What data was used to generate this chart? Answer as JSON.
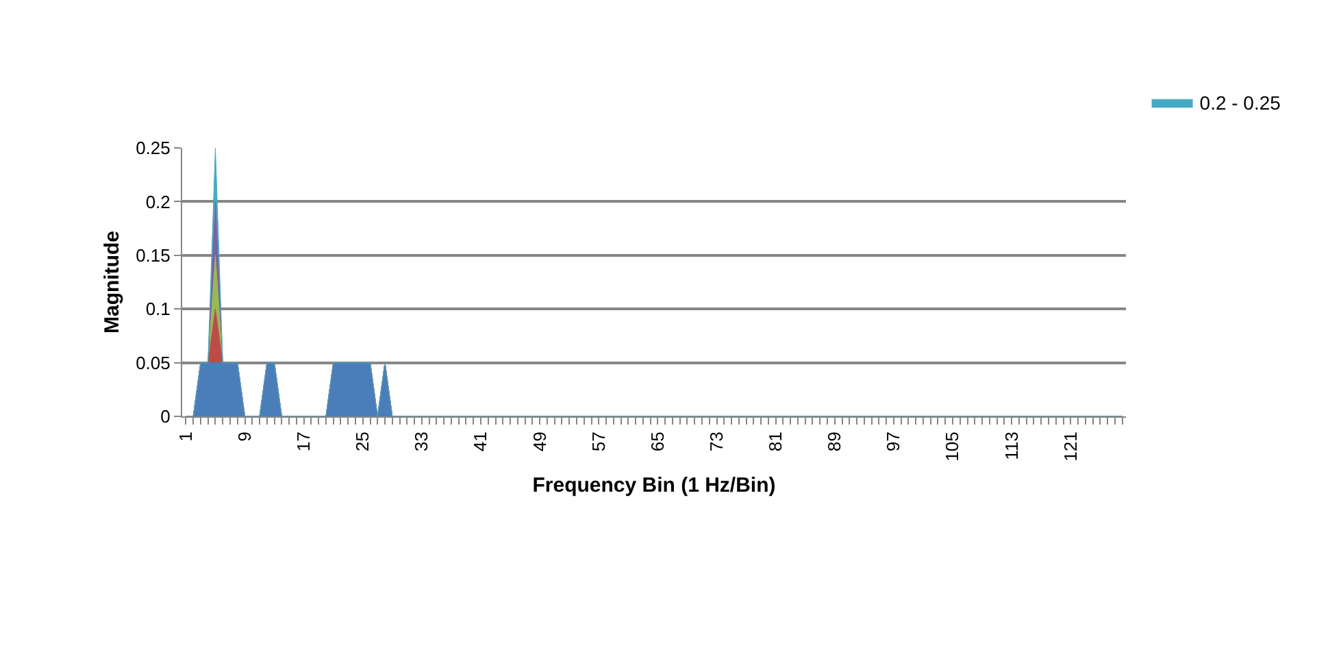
{
  "chart_data": {
    "type": "area",
    "xlabel": "Frequency Bin (1 Hz/Bin)",
    "ylabel": "Magnitude",
    "categories": [
      "1",
      null,
      null,
      null,
      null,
      null,
      null,
      null,
      "9",
      null,
      null,
      null,
      null,
      null,
      null,
      null,
      "17",
      null,
      null,
      null,
      null,
      null,
      null,
      null,
      "25",
      null,
      null,
      null,
      null,
      null,
      null,
      null,
      "33",
      null,
      null,
      null,
      null,
      null,
      null,
      null,
      "41",
      null,
      null,
      null,
      null,
      null,
      null,
      null,
      "49",
      null,
      null,
      null,
      null,
      null,
      null,
      null,
      "57",
      null,
      null,
      null,
      null,
      null,
      null,
      null,
      "65",
      null,
      null,
      null,
      null,
      null,
      null,
      null,
      "73",
      null,
      null,
      null,
      null,
      null,
      null,
      null,
      "81",
      null,
      null,
      null,
      null,
      null,
      null,
      null,
      "89",
      null,
      null,
      null,
      null,
      null,
      null,
      null,
      "97",
      null,
      null,
      null,
      null,
      null,
      null,
      null,
      "105",
      null,
      null,
      null,
      null,
      null,
      null,
      null,
      "113",
      null,
      null,
      null,
      null,
      null,
      null,
      null,
      "121",
      null,
      null,
      null,
      null,
      null,
      null,
      null
    ],
    "stacked": true,
    "series": [
      {
        "color": "#4a7ebb",
        "values": [
          0,
          0,
          0.05,
          0.05,
          0.05,
          0.05,
          0.05,
          0.05,
          0,
          0,
          0,
          0.05,
          0.05,
          0,
          0,
          0,
          0,
          0,
          0,
          0,
          0.05,
          0.05,
          0.05,
          0.05,
          0.05,
          0.05,
          0,
          0.05,
          0,
          0,
          0,
          0,
          0,
          0,
          0,
          0,
          0,
          0,
          0,
          0,
          0,
          0,
          0,
          0,
          0,
          0,
          0,
          0,
          0,
          0,
          0,
          0,
          0,
          0,
          0,
          0,
          0,
          0,
          0,
          0,
          0,
          0,
          0,
          0,
          0,
          0,
          0,
          0,
          0,
          0,
          0,
          0,
          0,
          0,
          0,
          0,
          0,
          0,
          0,
          0,
          0,
          0,
          0,
          0,
          0,
          0,
          0,
          0,
          0,
          0,
          0,
          0,
          0,
          0,
          0,
          0,
          0,
          0,
          0,
          0,
          0,
          0,
          0,
          0,
          0,
          0,
          0,
          0,
          0,
          0,
          0,
          0,
          0,
          0,
          0,
          0,
          0,
          0,
          0,
          0,
          0,
          0,
          0,
          0,
          0,
          0,
          0,
          0
        ]
      },
      {
        "color": "#be4b48",
        "values": [
          0,
          0,
          0,
          0,
          0.05,
          0,
          0,
          0,
          0,
          0,
          0,
          0,
          0,
          0,
          0,
          0,
          0,
          0,
          0,
          0,
          0,
          0,
          0,
          0,
          0,
          0,
          0,
          0,
          0,
          0,
          0,
          0,
          0,
          0,
          0,
          0,
          0,
          0,
          0,
          0,
          0,
          0,
          0,
          0,
          0,
          0,
          0,
          0,
          0,
          0,
          0,
          0,
          0,
          0,
          0,
          0,
          0,
          0,
          0,
          0,
          0,
          0,
          0,
          0,
          0,
          0,
          0,
          0,
          0,
          0,
          0,
          0,
          0,
          0,
          0,
          0,
          0,
          0,
          0,
          0,
          0,
          0,
          0,
          0,
          0,
          0,
          0,
          0,
          0,
          0,
          0,
          0,
          0,
          0,
          0,
          0,
          0,
          0,
          0,
          0,
          0,
          0,
          0,
          0,
          0,
          0,
          0,
          0,
          0,
          0,
          0,
          0,
          0,
          0,
          0,
          0,
          0,
          0,
          0,
          0,
          0,
          0,
          0,
          0,
          0,
          0,
          0,
          0
        ]
      },
      {
        "color": "#98b954",
        "values": [
          0,
          0,
          0,
          0,
          0.05,
          0,
          0,
          0,
          0,
          0,
          0,
          0,
          0,
          0,
          0,
          0,
          0,
          0,
          0,
          0,
          0,
          0,
          0,
          0,
          0,
          0,
          0,
          0,
          0,
          0,
          0,
          0,
          0,
          0,
          0,
          0,
          0,
          0,
          0,
          0,
          0,
          0,
          0,
          0,
          0,
          0,
          0,
          0,
          0,
          0,
          0,
          0,
          0,
          0,
          0,
          0,
          0,
          0,
          0,
          0,
          0,
          0,
          0,
          0,
          0,
          0,
          0,
          0,
          0,
          0,
          0,
          0,
          0,
          0,
          0,
          0,
          0,
          0,
          0,
          0,
          0,
          0,
          0,
          0,
          0,
          0,
          0,
          0,
          0,
          0,
          0,
          0,
          0,
          0,
          0,
          0,
          0,
          0,
          0,
          0,
          0,
          0,
          0,
          0,
          0,
          0,
          0,
          0,
          0,
          0,
          0,
          0,
          0,
          0,
          0,
          0,
          0,
          0,
          0,
          0,
          0,
          0,
          0,
          0,
          0,
          0,
          0,
          0
        ]
      },
      {
        "color": "#7d60a0",
        "values": [
          0,
          0,
          0,
          0,
          0.05,
          0,
          0,
          0,
          0,
          0,
          0,
          0,
          0,
          0,
          0,
          0,
          0,
          0,
          0,
          0,
          0,
          0,
          0,
          0,
          0,
          0,
          0,
          0,
          0,
          0,
          0,
          0,
          0,
          0,
          0,
          0,
          0,
          0,
          0,
          0,
          0,
          0,
          0,
          0,
          0,
          0,
          0,
          0,
          0,
          0,
          0,
          0,
          0,
          0,
          0,
          0,
          0,
          0,
          0,
          0,
          0,
          0,
          0,
          0,
          0,
          0,
          0,
          0,
          0,
          0,
          0,
          0,
          0,
          0,
          0,
          0,
          0,
          0,
          0,
          0,
          0,
          0,
          0,
          0,
          0,
          0,
          0,
          0,
          0,
          0,
          0,
          0,
          0,
          0,
          0,
          0,
          0,
          0,
          0,
          0,
          0,
          0,
          0,
          0,
          0,
          0,
          0,
          0,
          0,
          0,
          0,
          0,
          0,
          0,
          0,
          0,
          0,
          0,
          0,
          0,
          0,
          0,
          0,
          0,
          0,
          0,
          0,
          0
        ]
      },
      {
        "name": "0.2 - 0.25",
        "color": "#46aac5",
        "values": [
          0,
          0,
          0,
          0,
          0.05,
          0,
          0,
          0,
          0,
          0,
          0,
          0,
          0,
          0,
          0,
          0,
          0,
          0,
          0,
          0,
          0,
          0,
          0,
          0,
          0,
          0,
          0,
          0,
          0,
          0,
          0,
          0,
          0,
          0,
          0,
          0,
          0,
          0,
          0,
          0,
          0,
          0,
          0,
          0,
          0,
          0,
          0,
          0,
          0,
          0,
          0,
          0,
          0,
          0,
          0,
          0,
          0,
          0,
          0,
          0,
          0,
          0,
          0,
          0,
          0,
          0,
          0,
          0,
          0,
          0,
          0,
          0,
          0,
          0,
          0,
          0,
          0,
          0,
          0,
          0,
          0,
          0,
          0,
          0,
          0,
          0,
          0,
          0,
          0,
          0,
          0,
          0,
          0,
          0,
          0,
          0,
          0,
          0,
          0,
          0,
          0,
          0,
          0,
          0,
          0,
          0,
          0,
          0,
          0,
          0,
          0,
          0,
          0,
          0,
          0,
          0,
          0,
          0,
          0,
          0,
          0,
          0,
          0,
          0,
          0,
          0,
          0,
          0
        ]
      }
    ],
    "ylim": [
      0,
      0.25
    ],
    "yticks": [
      0,
      0.05,
      0.1,
      0.15,
      0.2,
      0.25
    ],
    "grid": "y",
    "legend": "top right"
  }
}
